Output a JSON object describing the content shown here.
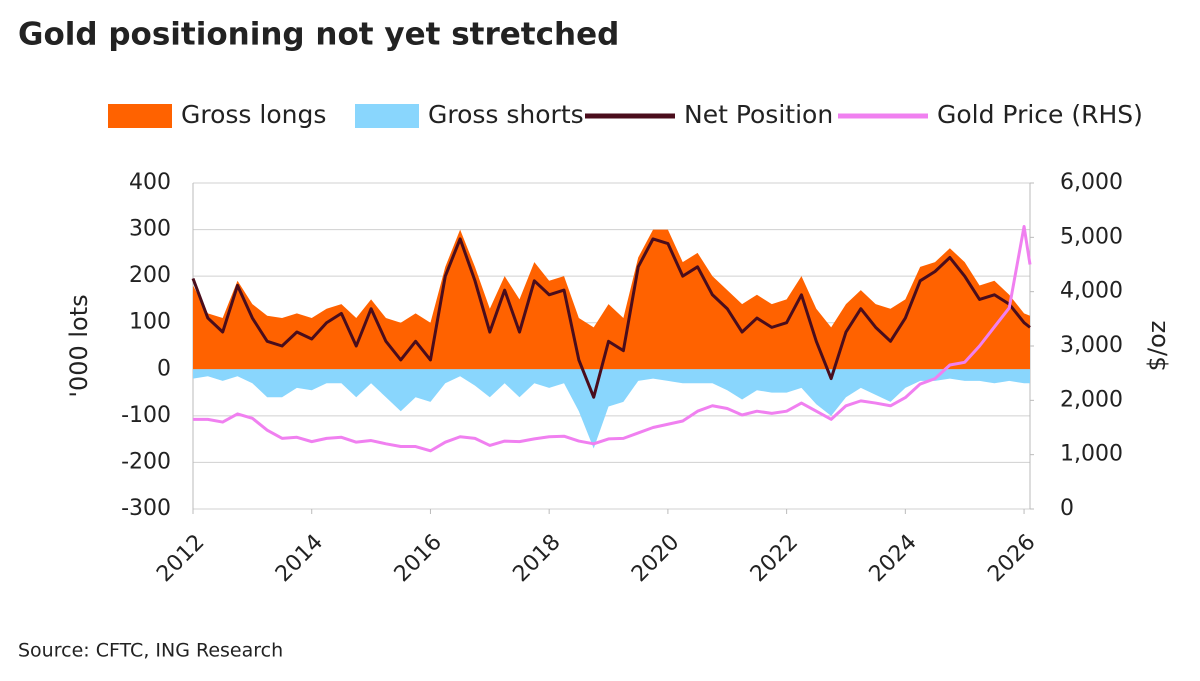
{
  "chart_data": {
    "type": "line",
    "title": "Gold positioning not yet stretched",
    "source": "Source: CFTC, ING Research",
    "ylabel": "'000 lots",
    "y2label": "$/oz",
    "xlim": [
      2012,
      2026.1
    ],
    "xticks": [
      2012,
      2014,
      2016,
      2018,
      2020,
      2022,
      2024,
      2026
    ],
    "ylim": [
      -300,
      400
    ],
    "yticks": [
      -300,
      -200,
      -100,
      0,
      100,
      200,
      300,
      400
    ],
    "y2lim": [
      0,
      6000
    ],
    "y2ticks": [
      0,
      {
        "value": 1000,
        "label": "1,000"
      },
      {
        "value": 2000,
        "label": "2,000"
      },
      {
        "value": 3000,
        "label": "3,000"
      },
      {
        "value": 4000,
        "label": "4,000"
      },
      {
        "value": 5000,
        "label": "5,000"
      },
      {
        "value": 6000,
        "label": "6,000"
      }
    ],
    "grid": true,
    "x": [
      2012,
      2012.25,
      2012.5,
      2012.75,
      2013,
      2013.25,
      2013.5,
      2013.75,
      2014,
      2014.25,
      2014.5,
      2014.75,
      2015,
      2015.25,
      2015.5,
      2015.75,
      2016,
      2016.25,
      2016.5,
      2016.75,
      2017,
      2017.25,
      2017.5,
      2017.75,
      2018,
      2018.25,
      2018.5,
      2018.75,
      2019,
      2019.25,
      2019.5,
      2019.75,
      2020,
      2020.25,
      2020.5,
      2020.75,
      2021,
      2021.25,
      2021.5,
      2021.75,
      2022,
      2022.25,
      2022.5,
      2022.75,
      2023,
      2023.25,
      2023.5,
      2023.75,
      2024,
      2024.25,
      2024.5,
      2024.75,
      2025,
      2025.25,
      2025.5,
      2025.75,
      2026,
      2026.1
    ],
    "series": [
      {
        "name": "Gross longs",
        "style": "area",
        "color": "#ff6200",
        "values": [
          180,
          120,
          110,
          190,
          140,
          115,
          110,
          120,
          110,
          130,
          140,
          110,
          150,
          110,
          100,
          120,
          100,
          220,
          300,
          220,
          130,
          200,
          150,
          230,
          190,
          200,
          110,
          90,
          140,
          110,
          240,
          300,
          300,
          230,
          250,
          200,
          170,
          140,
          160,
          140,
          150,
          200,
          130,
          90,
          140,
          170,
          140,
          130,
          150,
          220,
          230,
          260,
          230,
          180,
          190,
          160,
          120,
          115
        ]
      },
      {
        "name": "Gross shorts",
        "style": "area",
        "color": "#89d6fd",
        "values": [
          -20,
          -15,
          -25,
          -15,
          -30,
          -60,
          -60,
          -40,
          -45,
          -30,
          -30,
          -60,
          -30,
          -60,
          -90,
          -60,
          -70,
          -30,
          -15,
          -35,
          -60,
          -30,
          -60,
          -30,
          -40,
          -30,
          -90,
          -170,
          -80,
          -70,
          -25,
          -20,
          -25,
          -30,
          -30,
          -30,
          -45,
          -65,
          -45,
          -50,
          -50,
          -40,
          -75,
          -100,
          -60,
          -40,
          -55,
          -70,
          -40,
          -25,
          -25,
          -20,
          -25,
          -25,
          -30,
          -25,
          -30,
          -30
        ]
      },
      {
        "name": "Net Position",
        "style": "line",
        "color": "#4a0d1c",
        "values": [
          195,
          110,
          80,
          180,
          110,
          60,
          50,
          80,
          65,
          100,
          120,
          50,
          130,
          60,
          20,
          60,
          20,
          200,
          280,
          190,
          80,
          170,
          80,
          190,
          160,
          170,
          20,
          -60,
          60,
          40,
          220,
          280,
          270,
          200,
          220,
          160,
          130,
          80,
          110,
          90,
          100,
          160,
          60,
          -20,
          80,
          130,
          90,
          60,
          110,
          190,
          210,
          240,
          200,
          150,
          160,
          140,
          100,
          90
        ]
      },
      {
        "name": "Gold Price (RHS)",
        "style": "line",
        "axis": "y2",
        "color": "#f080f0",
        "values": [
          1650,
          1650,
          1600,
          1750,
          1670,
          1450,
          1300,
          1320,
          1240,
          1300,
          1320,
          1230,
          1260,
          1200,
          1150,
          1150,
          1070,
          1230,
          1330,
          1300,
          1170,
          1250,
          1240,
          1290,
          1330,
          1340,
          1250,
          1200,
          1290,
          1300,
          1400,
          1500,
          1560,
          1620,
          1800,
          1900,
          1850,
          1730,
          1800,
          1760,
          1800,
          1950,
          1800,
          1650,
          1900,
          1990,
          1950,
          1900,
          2050,
          2300,
          2400,
          2650,
          2700,
          3000,
          3350,
          3700,
          5200,
          4500
        ]
      }
    ]
  }
}
